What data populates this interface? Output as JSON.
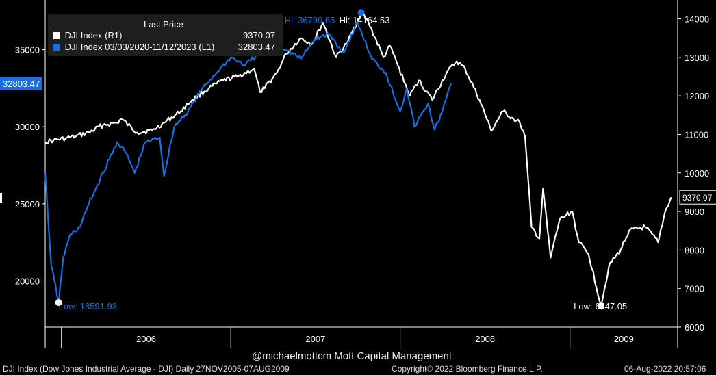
{
  "legend": {
    "header": "Last Price",
    "series": [
      {
        "label": "DJI Index  (R1)",
        "value": "9370.07",
        "color": "#ffffff"
      },
      {
        "label": "DJI Index 03/03/2020-11/12/2023   (L1)",
        "value": "32803.47",
        "color": "#1a6fe0"
      }
    ]
  },
  "annotations": {
    "hi_blue": "Hi: 36799.65",
    "hi_white": "Hi: 14164.53",
    "low_blue": "Low: 18591.93",
    "low_white": "Low: 6547.05",
    "left_badge": "32803.47",
    "right_badge": "9370.07"
  },
  "footer": {
    "credit": "@michaelmottcm Mott Capital Management",
    "left": "DJI Index (Dow Jones Industrial Average - DJI)  Daily 27NOV2005-07AUG2009",
    "middle": "Copyright© 2022 Bloomberg Finance L.P.",
    "right": "06-Aug-2022 20:57:06"
  },
  "colors": {
    "background": "#000000",
    "white_series": "#ffffff",
    "blue_series": "#1a6fe0",
    "legend_bg": "#1e1e1e"
  },
  "chart_data": {
    "type": "line",
    "x_ticks": [
      "2006",
      "2007",
      "2008",
      "2009"
    ],
    "y_left": {
      "ticks": [
        20000,
        25000,
        30000,
        35000
      ],
      "range": [
        17000,
        38000
      ]
    },
    "y_right": {
      "ticks": [
        6000,
        7000,
        8000,
        9000,
        10000,
        11000,
        12000,
        13000,
        14000
      ],
      "range": [
        6000,
        14400
      ]
    },
    "series": [
      {
        "name": "DJI Index  (R1)",
        "axis": "right",
        "x": [
          "2005-11-27",
          "2005-12-15",
          "2006-01-10",
          "2006-02-01",
          "2006-03-01",
          "2006-04-01",
          "2006-05-01",
          "2006-05-10",
          "2006-06-13",
          "2006-07-15",
          "2006-08-10",
          "2006-09-15",
          "2006-10-10",
          "2006-11-15",
          "2006-12-15",
          "2007-01-15",
          "2007-02-20",
          "2007-03-05",
          "2007-03-15",
          "2007-04-10",
          "2007-05-01",
          "2007-06-01",
          "2007-06-25",
          "2007-07-19",
          "2007-08-16",
          "2007-09-10",
          "2007-10-09",
          "2007-10-25",
          "2007-11-26",
          "2007-12-10",
          "2008-01-22",
          "2008-02-10",
          "2008-03-10",
          "2008-04-10",
          "2008-05-02",
          "2008-05-20",
          "2008-06-20",
          "2008-07-15",
          "2008-08-10",
          "2008-09-01",
          "2008-09-15",
          "2008-09-26",
          "2008-10-10",
          "2008-10-27",
          "2008-11-04",
          "2008-11-20",
          "2008-12-10",
          "2009-01-06",
          "2009-01-20",
          "2009-02-10",
          "2009-03-09",
          "2009-03-26",
          "2009-04-20",
          "2009-05-08",
          "2009-06-12",
          "2009-07-10",
          "2009-07-25",
          "2009-08-07"
        ],
        "values": [
          10800,
          10850,
          10900,
          10950,
          11050,
          11250,
          11300,
          11400,
          11050,
          11100,
          11300,
          11600,
          11900,
          12200,
          12400,
          12500,
          12700,
          12100,
          12200,
          12600,
          13100,
          13500,
          13350,
          13900,
          13000,
          13400,
          14164,
          13900,
          13000,
          13300,
          12000,
          12400,
          11900,
          12600,
          12900,
          12700,
          11900,
          11100,
          11600,
          11400,
          11300,
          10950,
          8600,
          8300,
          9600,
          7800,
          8800,
          9000,
          8200,
          7900,
          6547,
          7600,
          8000,
          8500,
          8600,
          8200,
          9000,
          9370
        ]
      },
      {
        "name": "DJI Index 03/03/2020-11/12/2023",
        "axis": "left",
        "x": [
          "2005-11-27",
          "2005-12-10",
          "2005-12-26",
          "2006-01-05",
          "2006-01-20",
          "2006-02-10",
          "2006-03-01",
          "2006-04-01",
          "2006-05-01",
          "2006-05-20",
          "2006-06-08",
          "2006-07-01",
          "2006-08-01",
          "2006-08-10",
          "2006-09-01",
          "2006-10-01",
          "2006-11-01",
          "2006-12-01",
          "2007-01-01",
          "2007-02-01",
          "2007-03-01",
          "2007-04-01",
          "2007-05-01",
          "2007-06-01",
          "2007-07-01",
          "2007-08-01",
          "2007-09-01",
          "2007-10-01",
          "2007-10-11",
          "2007-11-01",
          "2007-12-01",
          "2008-01-01",
          "2008-01-15",
          "2008-02-01",
          "2008-03-01",
          "2008-03-15",
          "2008-04-01",
          "2008-04-20"
        ],
        "values": [
          27000,
          21000,
          18591.93,
          21500,
          23000,
          23500,
          25000,
          27000,
          29000,
          28300,
          27000,
          29000,
          29300,
          26800,
          30000,
          31000,
          32500,
          33500,
          34500,
          34000,
          34700,
          35500,
          35000,
          34400,
          35700,
          36000,
          34800,
          36799.65,
          36000,
          34400,
          33500,
          31000,
          32500,
          30000,
          31500,
          29800,
          31000,
          32803.47
        ]
      }
    ]
  }
}
